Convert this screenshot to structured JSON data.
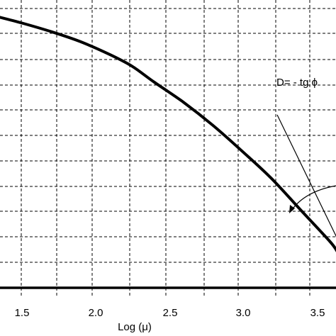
{
  "chart_data": {
    "type": "line",
    "xlabel": "Log (μ)",
    "ylabel": "",
    "title": "",
    "xlim": [
      1.35,
      3.65
    ],
    "x_ticks": [
      "1.5",
      "2.0",
      "2.5",
      "3.0",
      "3.5"
    ],
    "grid": true,
    "series": [
      {
        "style": "thick-curve",
        "x": [
          1.35,
          1.5,
          1.7,
          1.9,
          2.1,
          2.25,
          2.4,
          2.6,
          2.8,
          3.0,
          3.2,
          3.4,
          3.6,
          3.65
        ],
        "y": [
          0.94,
          0.92,
          0.89,
          0.855,
          0.81,
          0.77,
          0.715,
          0.645,
          0.565,
          0.475,
          0.38,
          0.27,
          0.16,
          0.125
        ]
      },
      {
        "style": "thin-tangent",
        "x": [
          3.24,
          3.65
        ],
        "y": [
          0.6,
          0.17
        ]
      }
    ],
    "annotations": [
      {
        "text": "D= - tg ϕ"
      }
    ]
  }
}
